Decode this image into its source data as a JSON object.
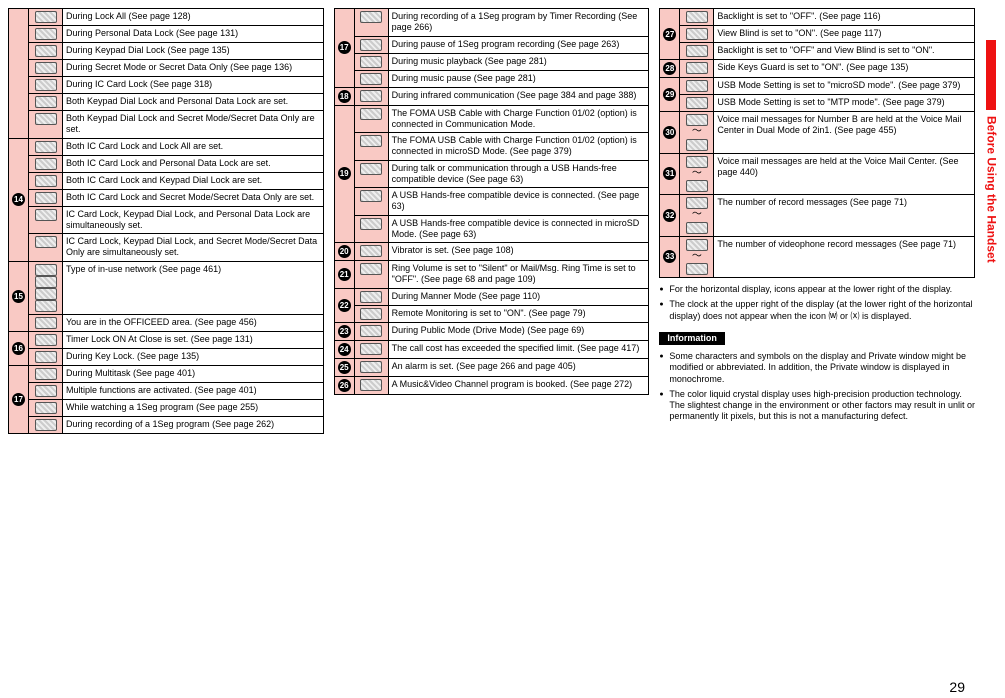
{
  "sidebar_text": "Before Using the Handset",
  "page_number": "29",
  "col1_num_labels": [
    "14",
    "15",
    "16",
    "17"
  ],
  "col1": [
    {
      "t": "During Lock All (See page 128)"
    },
    {
      "t": "During Personal Data Lock (See page 131)"
    },
    {
      "t": "During Keypad Dial Lock (See page 135)"
    },
    {
      "t": "During Secret Mode or Secret Data Only (See page 136)"
    },
    {
      "t": "During IC Card Lock (See page 318)"
    },
    {
      "t": "Both Keypad Dial Lock and Personal Data Lock are set."
    },
    {
      "t": "Both Keypad Dial Lock and Secret Mode/Secret Data Only are set."
    },
    {
      "t": "Both IC Card Lock and Lock All are set.",
      "num": 0
    },
    {
      "t": "Both IC Card Lock and Personal Data Lock are set."
    },
    {
      "t": "Both IC Card Lock and Keypad Dial Lock are set."
    },
    {
      "t": "Both IC Card Lock and Secret Mode/Secret Data Only are set."
    },
    {
      "t": "IC Card Lock, Keypad Dial Lock, and Personal Data Lock are simultaneously set."
    },
    {
      "t": "IC Card Lock, Keypad Dial Lock, and Secret Mode/Secret Data Only are simultaneously set."
    },
    {
      "t": "Type of in-use network (See page 461)",
      "num": 1,
      "tall": true
    },
    {
      "t": "You are in the OFFICEED area. (See page 456)"
    },
    {
      "t": "Timer Lock ON At Close is set. (See page 131)",
      "num": 2
    },
    {
      "t": "During Key Lock. (See page 135)"
    },
    {
      "t": "During Multitask (See page 401)",
      "num": 3
    },
    {
      "t": "Multiple functions are activated. (See page 401)"
    },
    {
      "t": "While watching a 1Seg program (See page 255)"
    },
    {
      "t": "During recording of a 1Seg program (See page 262)"
    }
  ],
  "col2_num_labels": [
    "17",
    "18",
    "19",
    "20",
    "21",
    "22",
    "23",
    "24",
    "25",
    "26"
  ],
  "col2": [
    {
      "t": "During recording of a 1Seg program by Timer Recording (See page 266)",
      "num": 0
    },
    {
      "t": "During pause of 1Seg program recording (See page 263)"
    },
    {
      "t": "During music playback (See page 281)"
    },
    {
      "t": "During music pause (See page 281)"
    },
    {
      "t": "During infrared communication (See page 384 and page 388)",
      "num": 1
    },
    {
      "t": "The FOMA USB Cable with Charge Function 01/02 (option) is connected in Communication Mode.",
      "num": 2
    },
    {
      "t": "The FOMA USB Cable with Charge Function 01/02 (option) is connected in microSD Mode. (See page 379)"
    },
    {
      "t": "During talk or communication through a USB Hands-free compatible device (See page 63)"
    },
    {
      "t": "A USB Hands-free compatible device is connected. (See page 63)"
    },
    {
      "t": "A USB Hands-free compatible device is connected in microSD Mode. (See page 63)"
    },
    {
      "t": "Vibrator is set. (See page 108)",
      "num": 3
    },
    {
      "t": "Ring Volume is set to \"Silent\" or Mail/Msg. Ring Time is set to \"OFF\". (See page 68 and page 109)",
      "num": 4
    },
    {
      "t": "During Manner Mode (See page 110)",
      "num": 5
    },
    {
      "t": "Remote Monitoring is set to \"ON\". (See page 79)"
    },
    {
      "t": "During Public Mode (Drive Mode) (See page 69)",
      "num": 6
    },
    {
      "t": "The call cost has exceeded the specified limit. (See page 417)",
      "num": 7
    },
    {
      "t": "An alarm is set. (See page 266 and page 405)",
      "num": 8
    },
    {
      "t": "A Music&Video Channel program is booked. (See page 272)",
      "num": 9
    }
  ],
  "col3_num_labels": [
    "27",
    "28",
    "29",
    "30",
    "31",
    "32",
    "33"
  ],
  "col3": [
    {
      "t": "Backlight is set to \"OFF\". (See page 116)",
      "num": 0
    },
    {
      "t": "View Blind is set to \"ON\". (See page 117)"
    },
    {
      "t": "Backlight is set to \"OFF\" and View Blind is set to \"ON\"."
    },
    {
      "t": "Side Keys Guard is set to \"ON\". (See page 135)",
      "num": 1
    },
    {
      "t": "USB Mode Setting is set to \"microSD mode\". (See page 379)",
      "num": 2
    },
    {
      "t": "USB Mode Setting is set to \"MTP mode\". (See page 379)"
    },
    {
      "t": "Voice mail messages for Number B are held at the Voice Mail Center in Dual Mode of 2in1. (See page 455)",
      "num": 3,
      "tilde": true
    },
    {
      "t": "Voice mail messages are held at the Voice Mail Center. (See page 440)",
      "num": 4,
      "tilde": true
    },
    {
      "t": "The number of record messages (See page 71)",
      "num": 5,
      "tilde": true
    },
    {
      "t": "The number of videophone record messages (See page 71)",
      "num": 6,
      "tilde": true
    }
  ],
  "notes_main": [
    "For the horizontal display, icons appear at the lower right of the display.",
    "The clock at the upper right of the display (at the lower right of the horizontal display) does not appear when the icon ⒲ or ⒳ is displayed."
  ],
  "info_header": "Information",
  "notes_info": [
    "Some characters and symbols on the display and Private window might be modified or abbreviated. In addition, the Private window is displayed in monochrome.",
    "The color liquid crystal display uses high-precision production technology. The slightest change in the environment or other factors may result in unlit or permanently lit pixels, but this is not a manufacturing defect."
  ]
}
